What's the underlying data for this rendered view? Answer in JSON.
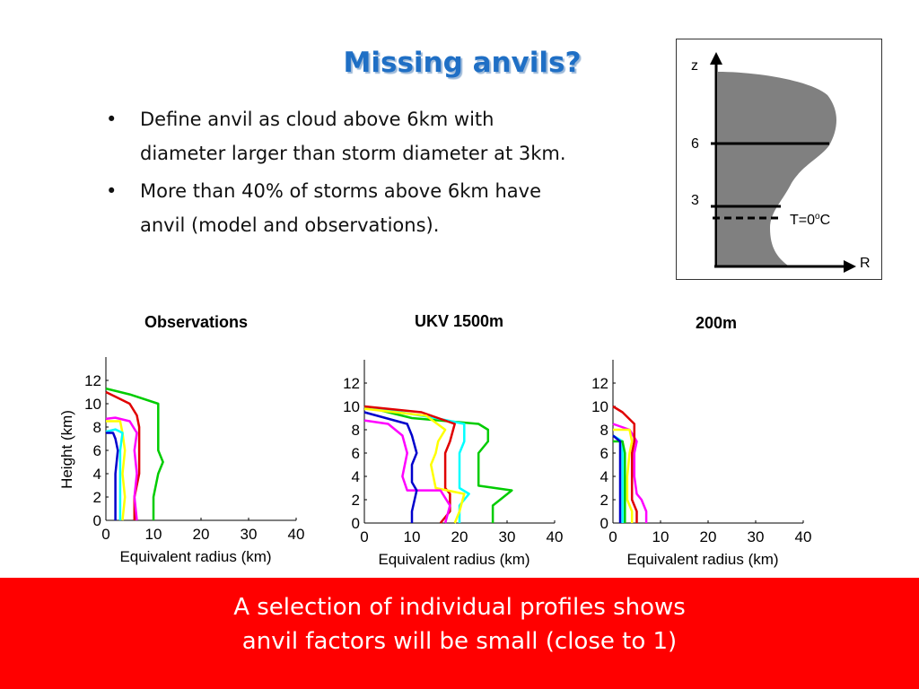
{
  "slide": {
    "title": "Missing anvils?",
    "bullets": [
      "Define anvil as cloud above 6km with diameter larger than storm diameter at 3km.",
      "More than 40% of storms above 6km have anvil (model and observations)."
    ],
    "bullet_glyph": "•",
    "banner_lines": [
      "A selection of individual profiles shows",
      "anvil factors will be small (close to 1)"
    ],
    "banner_color": "#ff0000",
    "title_color": "#1f6fc5"
  },
  "diagram": {
    "z_label": "z",
    "r_label": "R",
    "tick_6": "6",
    "tick_3": "3",
    "freezing_label": "T=0",
    "freezing_sup": "o",
    "freezing_unit": "C",
    "fill_color": "#808080"
  },
  "panels": [
    {
      "title": "Observations"
    },
    {
      "title": "UKV 1500m"
    },
    {
      "title": "200m"
    }
  ],
  "chart_data": [
    {
      "type": "line",
      "title": "Observations",
      "xlabel": "Equivalent radius (km)",
      "ylabel": "Height (km)",
      "xlim": [
        0,
        40
      ],
      "ylim": [
        0,
        14
      ],
      "xticks": [
        "0",
        "10",
        "20",
        "30",
        "40"
      ],
      "yticks": [
        "0",
        "2",
        "4",
        "6",
        "8",
        "10",
        "12"
      ],
      "series": [
        {
          "color": "#00cc00",
          "points": [
            [
              10,
              0
            ],
            [
              10,
              2
            ],
            [
              11,
              4
            ],
            [
              12,
              5
            ],
            [
              11,
              6
            ],
            [
              11,
              8
            ],
            [
              11,
              10
            ],
            [
              5,
              10.8
            ],
            [
              0,
              11.3
            ]
          ]
        },
        {
          "color": "#e00000",
          "points": [
            [
              6,
              0
            ],
            [
              6,
              2
            ],
            [
              7,
              4
            ],
            [
              7,
              6
            ],
            [
              7,
              7
            ],
            [
              7,
              8
            ],
            [
              6.5,
              9
            ],
            [
              5,
              10
            ],
            [
              0,
              11
            ]
          ]
        },
        {
          "color": "#ff00ff",
          "points": [
            [
              6.5,
              0
            ],
            [
              6,
              2
            ],
            [
              6.5,
              4
            ],
            [
              6,
              6
            ],
            [
              6.5,
              7.5
            ],
            [
              5,
              8.5
            ],
            [
              2,
              8.8
            ],
            [
              0,
              8.7
            ]
          ]
        },
        {
          "color": "#ffff00",
          "points": [
            [
              3.5,
              0
            ],
            [
              4,
              2
            ],
            [
              3.5,
              4
            ],
            [
              4,
              6
            ],
            [
              3.5,
              7.5
            ],
            [
              3,
              8.5
            ],
            [
              0,
              8.5
            ]
          ]
        },
        {
          "color": "#00ffff",
          "points": [
            [
              3,
              0
            ],
            [
              3,
              2
            ],
            [
              3,
              4
            ],
            [
              3,
              6
            ],
            [
              3.5,
              7.5
            ],
            [
              2,
              7.8
            ],
            [
              0,
              7.6
            ]
          ]
        },
        {
          "color": "#0000cc",
          "points": [
            [
              2,
              0
            ],
            [
              2,
              2
            ],
            [
              2,
              4
            ],
            [
              2.5,
              6
            ],
            [
              2,
              7
            ],
            [
              1.5,
              7.5
            ],
            [
              0,
              7.5
            ]
          ]
        }
      ]
    },
    {
      "type": "line",
      "title": "UKV 1500m",
      "xlabel": "Equivalent radius (km)",
      "ylabel": "",
      "xlim": [
        0,
        40
      ],
      "ylim": [
        0,
        14
      ],
      "xticks": [
        "0",
        "10",
        "20",
        "30",
        "40"
      ],
      "yticks": [
        "0",
        "2",
        "4",
        "6",
        "8",
        "10",
        "12"
      ],
      "series": [
        {
          "color": "#00cc00",
          "points": [
            [
              27,
              0
            ],
            [
              27,
              1.5
            ],
            [
              31,
              2.8
            ],
            [
              24,
              3.2
            ],
            [
              24,
              6
            ],
            [
              26,
              7
            ],
            [
              26,
              8
            ],
            [
              24,
              8.5
            ],
            [
              10,
              9
            ],
            [
              0,
              10
            ]
          ]
        },
        {
          "color": "#00ffff",
          "points": [
            [
              20,
              0
            ],
            [
              20,
              1.5
            ],
            [
              22,
              2.5
            ],
            [
              20,
              3
            ],
            [
              20,
              6
            ],
            [
              21,
              7
            ],
            [
              21,
              8.5
            ],
            [
              15,
              9
            ],
            [
              0,
              10
            ]
          ]
        },
        {
          "color": "#e00000",
          "points": [
            [
              16,
              0
            ],
            [
              18,
              1
            ],
            [
              18,
              2.5
            ],
            [
              17,
              3
            ],
            [
              17,
              6
            ],
            [
              18,
              7
            ],
            [
              19,
              8.5
            ],
            [
              12,
              9.5
            ],
            [
              0,
              10
            ]
          ]
        },
        {
          "color": "#ffff00",
          "points": [
            [
              19,
              0
            ],
            [
              20,
              1
            ],
            [
              21,
              2.5
            ],
            [
              15,
              3
            ],
            [
              14,
              5
            ],
            [
              15,
              6
            ],
            [
              15.5,
              7
            ],
            [
              17,
              8
            ],
            [
              13,
              9.2
            ],
            [
              0,
              9.8
            ]
          ]
        },
        {
          "color": "#ff00ff",
          "points": [
            [
              17,
              0
            ],
            [
              18,
              1.5
            ],
            [
              16,
              2.8
            ],
            [
              9,
              2.8
            ],
            [
              8,
              4
            ],
            [
              9,
              6
            ],
            [
              8,
              7.5
            ],
            [
              5,
              8.5
            ],
            [
              0,
              8.8
            ]
          ]
        },
        {
          "color": "#0000cc",
          "points": [
            [
              10,
              0
            ],
            [
              10,
              1
            ],
            [
              11,
              2.8
            ],
            [
              10,
              3.5
            ],
            [
              10,
              5
            ],
            [
              11,
              6
            ],
            [
              10,
              7.5
            ],
            [
              9,
              8.5
            ],
            [
              0,
              9.5
            ]
          ]
        }
      ]
    },
    {
      "type": "line",
      "title": "200m",
      "xlabel": "Equivalent radius (km)",
      "ylabel": "",
      "xlim": [
        0,
        40
      ],
      "ylim": [
        0,
        14
      ],
      "xticks": [
        "0",
        "10",
        "20",
        "30",
        "40"
      ],
      "yticks": [
        "0",
        "2",
        "4",
        "6",
        "8",
        "10",
        "12"
      ],
      "series": [
        {
          "color": "#ff00ff",
          "points": [
            [
              7,
              0
            ],
            [
              7,
              1
            ],
            [
              6,
              2
            ],
            [
              5,
              2.5
            ],
            [
              4.5,
              4
            ],
            [
              4.5,
              6
            ],
            [
              5,
              7
            ],
            [
              3.5,
              8
            ],
            [
              0,
              8.5
            ]
          ]
        },
        {
          "color": "#e00000",
          "points": [
            [
              5,
              0
            ],
            [
              5,
              1
            ],
            [
              4,
              2
            ],
            [
              4,
              4
            ],
            [
              4,
              6
            ],
            [
              4.5,
              7
            ],
            [
              4.5,
              8.5
            ],
            [
              2,
              9.5
            ],
            [
              0,
              10
            ]
          ]
        },
        {
          "color": "#ffff00",
          "points": [
            [
              4,
              0
            ],
            [
              4,
              1
            ],
            [
              3,
              2
            ],
            [
              3,
              4
            ],
            [
              3.5,
              6
            ],
            [
              4,
              7
            ],
            [
              3.5,
              8
            ],
            [
              0,
              8
            ]
          ]
        },
        {
          "color": "#00ffff",
          "points": [
            [
              2,
              0
            ],
            [
              2,
              2
            ],
            [
              2,
              4
            ],
            [
              2,
              6
            ],
            [
              2,
              7
            ],
            [
              0,
              7.5
            ]
          ]
        },
        {
          "color": "#00cc00",
          "points": [
            [
              2.5,
              0
            ],
            [
              2.5,
              2
            ],
            [
              2.5,
              4
            ],
            [
              2.5,
              6
            ],
            [
              2,
              7
            ],
            [
              0,
              7
            ]
          ]
        },
        {
          "color": "#0000cc",
          "points": [
            [
              1.5,
              0
            ],
            [
              1.5,
              2
            ],
            [
              1.5,
              4
            ],
            [
              1.5,
              6
            ],
            [
              1.5,
              7
            ],
            [
              0,
              7.5
            ]
          ]
        }
      ]
    }
  ]
}
